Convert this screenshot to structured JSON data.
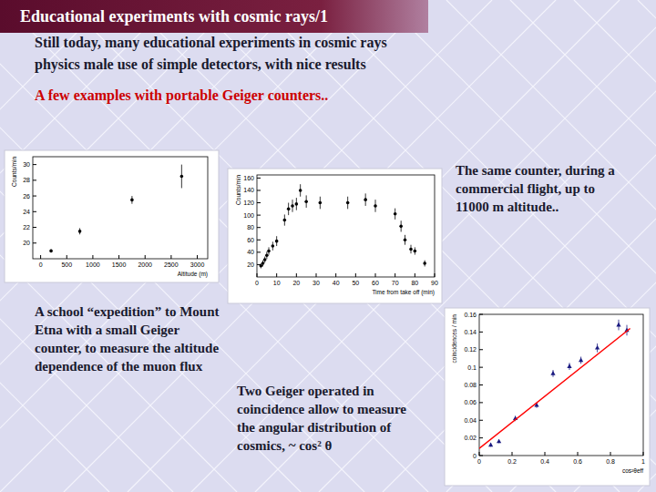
{
  "slide": {
    "title": "Educational experiments with cosmic rays/1",
    "intro": [
      "Still today, many educational experiments in cosmic rays",
      "physics male use of simple detectors, with nice results"
    ],
    "subtitle": "A few examples with portable Geiger counters..",
    "captions": [
      [
        "A school “expedition” to Mount",
        "Etna with a small Geiger",
        "counter, to measure the altitude",
        "dependence of the muon flux"
      ],
      [
        "The same counter, during a",
        "commercial flight, up to",
        "11000 m altitude.."
      ],
      [
        "Two Geiger operated in",
        "coincidence allow to measure",
        "the angular distribution of",
        "cosmics, ~ cos² θ"
      ]
    ]
  },
  "chart_data": [
    {
      "type": "scatter",
      "x_label": "Altitude (m)",
      "y_label": "Counts/min",
      "x": [
        200,
        750,
        1750,
        2700
      ],
      "values": [
        19.0,
        21.5,
        25.5,
        28.5
      ],
      "errors": [
        0.2,
        0.4,
        0.5,
        1.5
      ],
      "color": "#000000",
      "marker": "circle",
      "xlim": [
        -150,
        3200
      ],
      "ylim": [
        18,
        31
      ],
      "xticks": [
        0,
        500,
        1000,
        1500,
        2000,
        2500,
        3000
      ],
      "yticks": [
        20,
        22,
        24,
        26,
        28,
        30
      ]
    },
    {
      "type": "scatter",
      "x_label": "Time from take off (min)",
      "y_label": "Counts/min",
      "x": [
        2,
        3,
        4,
        5,
        6,
        8,
        10,
        14,
        16,
        18,
        20,
        22,
        25,
        32,
        46,
        55,
        60,
        70,
        73,
        75,
        78,
        80,
        85
      ],
      "values": [
        18,
        22,
        28,
        35,
        42,
        50,
        58,
        92,
        110,
        115,
        118,
        140,
        122,
        120,
        120,
        125,
        115,
        102,
        82,
        60,
        45,
        42,
        22
      ],
      "errors": [
        4,
        5,
        5,
        6,
        6,
        7,
        8,
        9,
        10,
        10,
        10,
        10,
        10,
        10,
        10,
        10,
        10,
        9,
        9,
        8,
        7,
        6,
        5
      ],
      "color": "#000000",
      "marker": "circle",
      "xlim": [
        0,
        90
      ],
      "ylim": [
        0,
        165
      ],
      "xticks": [
        0,
        10,
        20,
        30,
        40,
        50,
        60,
        70,
        80,
        90
      ],
      "yticks": [
        20,
        40,
        60,
        80,
        100,
        120,
        140,
        160
      ]
    },
    {
      "type": "scatter",
      "x_label": "cos²θeff",
      "y_label": "coincidences / min",
      "series": [
        {
          "type": "scatter",
          "color": "#1a1a80",
          "marker": "triangle",
          "x": [
            0.07,
            0.12,
            0.22,
            0.35,
            0.45,
            0.55,
            0.62,
            0.72,
            0.85,
            0.9
          ],
          "values": [
            0.012,
            0.016,
            0.042,
            0.057,
            0.093,
            0.101,
            0.108,
            0.122,
            0.148,
            0.142
          ],
          "errors": [
            0.002,
            0.002,
            0.003,
            0.003,
            0.004,
            0.004,
            0.004,
            0.005,
            0.006,
            0.006
          ]
        },
        {
          "type": "line",
          "color": "#ff0000",
          "x": [
            0,
            0.92
          ],
          "values": [
            0.008,
            0.144
          ]
        }
      ],
      "xlim": [
        0,
        1
      ],
      "ylim": [
        0,
        0.16
      ],
      "xticks": [
        0,
        0.2,
        0.4,
        0.6,
        0.8,
        1
      ],
      "yticks": [
        0,
        0.02,
        0.04,
        0.06,
        0.08,
        0.1,
        0.12,
        0.14,
        0.16
      ]
    }
  ]
}
